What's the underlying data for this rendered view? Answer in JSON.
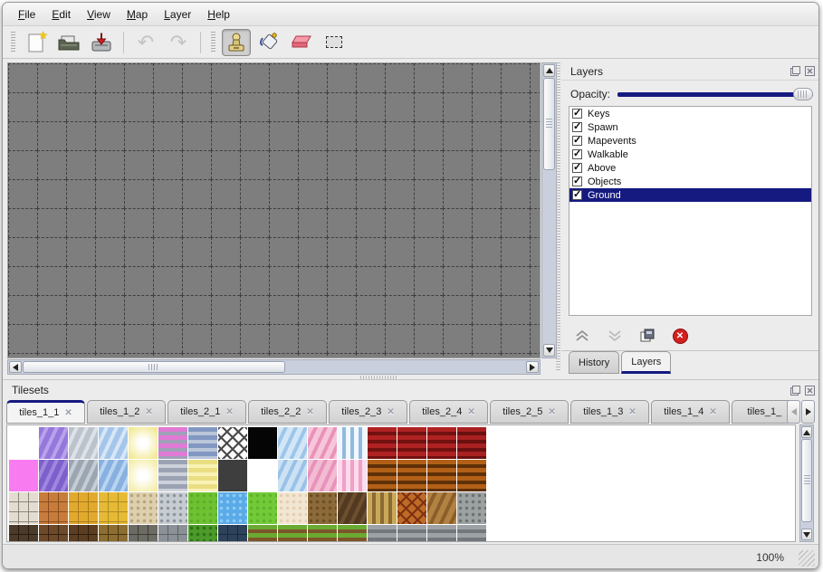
{
  "menu": {
    "items": [
      {
        "label": "File"
      },
      {
        "label": "Edit"
      },
      {
        "label": "View"
      },
      {
        "label": "Map"
      },
      {
        "label": "Layer"
      },
      {
        "label": "Help"
      }
    ]
  },
  "toolbar": {
    "buttons": [
      "new-file",
      "open",
      "save",
      "undo",
      "redo",
      "stamp",
      "fill",
      "eraser",
      "select"
    ],
    "active_tool": "stamp"
  },
  "icons": {
    "star": "★",
    "undo_glyph": "↶",
    "redo_glyph": "↷",
    "check": "✓",
    "close": "✕"
  },
  "canvas": {
    "grid": {
      "cols": 19,
      "rows": 11,
      "cell": 32
    }
  },
  "layers_panel": {
    "title": "Layers",
    "opacity_label": "Opacity:",
    "opacity_percent": 100,
    "layers": [
      {
        "name": "Keys",
        "checked": true,
        "selected": false
      },
      {
        "name": "Spawn",
        "checked": true,
        "selected": false
      },
      {
        "name": "Mapevents",
        "checked": true,
        "selected": false
      },
      {
        "name": "Walkable",
        "checked": true,
        "selected": false
      },
      {
        "name": "Above",
        "checked": true,
        "selected": false
      },
      {
        "name": "Objects",
        "checked": true,
        "selected": false
      },
      {
        "name": "Ground",
        "checked": true,
        "selected": true
      }
    ],
    "tabs": [
      {
        "label": "History",
        "active": false
      },
      {
        "label": "Layers",
        "active": true
      }
    ]
  },
  "tilesets_panel": {
    "title": "Tilesets",
    "tabs": [
      {
        "label": "tiles_1_1",
        "active": true
      },
      {
        "label": "tiles_1_2",
        "active": false
      },
      {
        "label": "tiles_2_1",
        "active": false
      },
      {
        "label": "tiles_2_2",
        "active": false
      },
      {
        "label": "tiles_2_3",
        "active": false
      },
      {
        "label": "tiles_2_4",
        "active": false
      },
      {
        "label": "tiles_2_5",
        "active": false
      },
      {
        "label": "tiles_1_3",
        "active": false
      },
      {
        "label": "tiles_1_4",
        "active": false
      },
      {
        "label": "tiles_1_",
        "active": false
      }
    ]
  },
  "tiles": {
    "rows": [
      [
        {
          "p": "solid",
          "c1": "#ffffff"
        },
        {
          "p": "diag",
          "c1": "#9478dc",
          "c2": "#b9a2ec"
        },
        {
          "p": "diag",
          "c1": "#bcc3cd",
          "c2": "#dde2e8"
        },
        {
          "p": "diag",
          "c1": "#a5c6ea",
          "c2": "#d6e6f6"
        },
        {
          "p": "glow",
          "c1": "#f2e890"
        },
        {
          "p": "h",
          "c1": "#e07ad4",
          "c2": "#a0a0b8"
        },
        {
          "p": "h",
          "c1": "#8298c2",
          "c2": "#bac6da"
        },
        {
          "p": "lattice",
          "c1": "#fafafa",
          "c2": "#4a4a4a"
        },
        {
          "p": "solid",
          "c1": "#050505"
        },
        {
          "p": "diag",
          "c1": "#d2e6f6",
          "c2": "#9cc6ea"
        },
        {
          "p": "diag",
          "c1": "#f6c6da",
          "c2": "#ea92ba"
        },
        {
          "p": "v",
          "c1": "#f0f8fe",
          "c2": "#92bade"
        },
        {
          "p": "h",
          "c1": "#b02222",
          "c2": "#731111"
        },
        {
          "p": "h",
          "c1": "#b02222",
          "c2": "#731111"
        },
        {
          "p": "h",
          "c1": "#b02222",
          "c2": "#731111"
        },
        {
          "p": "h",
          "c1": "#a82020",
          "c2": "#6a1010"
        }
      ],
      [
        {
          "p": "solid",
          "c1": "#f87cf0"
        },
        {
          "p": "diag",
          "c1": "#7e60cc",
          "c2": "#a086de"
        },
        {
          "p": "diag",
          "c1": "#9ca6b2",
          "c2": "#c4ccd4"
        },
        {
          "p": "diag",
          "c1": "#88b0e0",
          "c2": "#b8d4f0"
        },
        {
          "p": "glow",
          "c1": "#f4eca6"
        },
        {
          "p": "h",
          "c1": "#9ba3b3",
          "c2": "#cdd1d9"
        },
        {
          "p": "h",
          "c1": "#eade82",
          "c2": "#f8f2b6"
        },
        {
          "p": "solid",
          "c1": "#3e3e3e"
        },
        {
          "p": "solid",
          "c1": "#ffffff"
        },
        {
          "p": "diag",
          "c1": "#cce2f4",
          "c2": "#9ac2e8"
        },
        {
          "p": "diag",
          "c1": "#f2bcd2",
          "c2": "#e892bc"
        },
        {
          "p": "v",
          "c1": "#fbdcec",
          "c2": "#f0a0c8"
        },
        {
          "p": "h",
          "c1": "#b26018",
          "c2": "#5e3008"
        },
        {
          "p": "h",
          "c1": "#b26018",
          "c2": "#5e3008"
        },
        {
          "p": "h",
          "c1": "#b26018",
          "c2": "#5e3008"
        },
        {
          "p": "h",
          "c1": "#b26018",
          "c2": "#5e3008"
        }
      ],
      [
        {
          "p": "grid",
          "c1": "#e2ddd0",
          "c2": "#8a8578"
        },
        {
          "p": "grid",
          "c1": "#c87c3c",
          "c2": "#8a4c1c"
        },
        {
          "p": "grid",
          "c1": "#e2aa2c",
          "c2": "#aa7a1c"
        },
        {
          "p": "grid",
          "c1": "#e6ba34",
          "c2": "#ae8a22"
        },
        {
          "p": "dots",
          "c1": "#decfae",
          "c2": "#b5a67e"
        },
        {
          "p": "dots",
          "c1": "#c6ccd2",
          "c2": "#8d949c"
        },
        {
          "p": "dots",
          "c1": "#6ec232",
          "c2": "#5cae26"
        },
        {
          "p": "dots",
          "c1": "#5aaae8",
          "c2": "#8ecdf5"
        },
        {
          "p": "dots",
          "c1": "#72ca38",
          "c2": "#60b22a"
        },
        {
          "p": "dots",
          "c1": "#f2e6d2",
          "c2": "#e2ceb2"
        },
        {
          "p": "dots",
          "c1": "#8c6a3a",
          "c2": "#6c4e22"
        },
        {
          "p": "diag",
          "c1": "#523a22",
          "c2": "#6e502e"
        },
        {
          "p": "v",
          "c1": "#c9a959",
          "c2": "#8c6a32"
        },
        {
          "p": "lattice",
          "c1": "#c06a28",
          "c2": "#7c3210"
        },
        {
          "p": "diag",
          "c1": "#b28242",
          "c2": "#8c5e2a"
        },
        {
          "p": "dots",
          "c1": "#9ca2a2",
          "c2": "#6c7272"
        }
      ],
      [
        {
          "p": "grid",
          "c1": "#4c3a2a",
          "c2": "#281a0e"
        },
        {
          "p": "grid",
          "c1": "#6c4a2a",
          "c2": "#381f0e"
        },
        {
          "p": "grid",
          "c1": "#5c3e22",
          "c2": "#2e1e0c"
        },
        {
          "p": "grid",
          "c1": "#8c6e32",
          "c2": "#4a3410"
        },
        {
          "p": "grid",
          "c1": "#6c6c64",
          "c2": "#3c3c34"
        },
        {
          "p": "grid",
          "c1": "#8c9198",
          "c2": "#5c6168"
        },
        {
          "p": "dots",
          "c1": "#4c9a2a",
          "c2": "#2f7016"
        },
        {
          "p": "grid",
          "c1": "#2e425a",
          "c2": "#182a3c"
        },
        {
          "p": "h",
          "c1": "#6aaa32",
          "c2": "#7c562a"
        },
        {
          "p": "h",
          "c1": "#6aaa32",
          "c2": "#7c562a"
        },
        {
          "p": "h",
          "c1": "#6aaa32",
          "c2": "#7c562a"
        },
        {
          "p": "h",
          "c1": "#6aaa32",
          "c2": "#7c562a"
        },
        {
          "p": "h",
          "c1": "#9ca2a6",
          "c2": "#72787c"
        },
        {
          "p": "h",
          "c1": "#9ca2a6",
          "c2": "#72787c"
        },
        {
          "p": "h",
          "c1": "#9ca2a6",
          "c2": "#72787c"
        },
        {
          "p": "h",
          "c1": "#9ca2a6",
          "c2": "#72787c"
        }
      ]
    ]
  },
  "statusbar": {
    "zoom": "100%"
  },
  "colors": {
    "selection": "#151a80",
    "canvas_bg": "#7e7e7e",
    "accent": "#151a80"
  }
}
